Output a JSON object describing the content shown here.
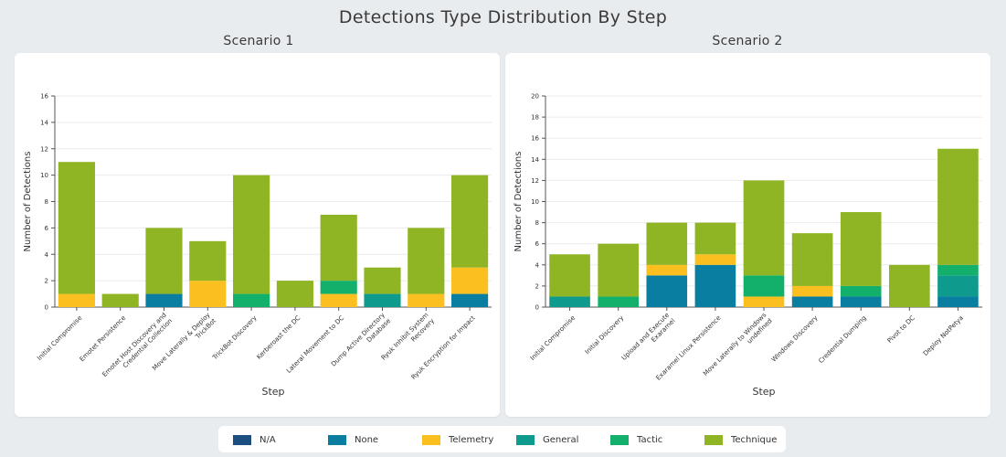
{
  "page_title": "Detections Type Distribution By Step",
  "legend": [
    {
      "name": "N/A",
      "color": "#1c4e80"
    },
    {
      "name": "None",
      "color": "#0a7ea0"
    },
    {
      "name": "Telemetry",
      "color": "#fbbf1f"
    },
    {
      "name": "General",
      "color": "#0f9a8e"
    },
    {
      "name": "Tactic",
      "color": "#12b06a"
    },
    {
      "name": "Technique",
      "color": "#8fb424"
    }
  ],
  "chart_data": [
    {
      "type": "bar",
      "stacked": true,
      "title": "Scenario 1",
      "xlabel": "Step",
      "ylabel": "Number of Detections",
      "ylim": [
        0,
        16
      ],
      "yticks": [
        0,
        2,
        4,
        6,
        8,
        10,
        12,
        14,
        16
      ],
      "grid": true,
      "categories": [
        "Initial Compromise",
        "Emotet Persistence",
        "Emotet Host Discovery and Credential Collection",
        "Move Laterally & Deploy TrickBot",
        "TrickBot Discovery",
        "Kerberoast the DC",
        "Lateral Movement to DC",
        "Dump Active Directory Database",
        "Ryuk Inhibit System Recovery",
        "Ryuk Encryption for Impact"
      ],
      "series": [
        {
          "name": "N/A",
          "values": [
            0,
            0,
            0,
            0,
            0,
            0,
            0,
            0,
            0,
            0
          ]
        },
        {
          "name": "None",
          "values": [
            0,
            0,
            1,
            0,
            0,
            0,
            0,
            0,
            0,
            1
          ]
        },
        {
          "name": "Telemetry",
          "values": [
            1,
            0,
            0,
            2,
            0,
            0,
            1,
            0,
            1,
            2
          ]
        },
        {
          "name": "General",
          "values": [
            0,
            0,
            0,
            0,
            0,
            0,
            0,
            1,
            0,
            0
          ]
        },
        {
          "name": "Tactic",
          "values": [
            0,
            0,
            0,
            0,
            1,
            0,
            1,
            0,
            0,
            0
          ]
        },
        {
          "name": "Technique",
          "values": [
            10,
            1,
            5,
            3,
            9,
            2,
            5,
            2,
            5,
            7
          ]
        }
      ]
    },
    {
      "type": "bar",
      "stacked": true,
      "title": "Scenario 2",
      "xlabel": "Step",
      "ylabel": "Number of Detections",
      "ylim": [
        0,
        20
      ],
      "yticks": [
        0,
        2,
        4,
        6,
        8,
        10,
        12,
        14,
        16,
        18,
        20
      ],
      "grid": true,
      "categories": [
        "Initial Compromise",
        "Initial Discovery",
        "Upload and Execute Exaramel",
        "Exaramel Linux Persistence",
        "Move Laterally to Windows undefined",
        "Windows Discovery",
        "Credential Dumping",
        "Pivot to DC",
        "Deploy NotPetya"
      ],
      "series": [
        {
          "name": "N/A",
          "values": [
            0,
            0,
            0,
            0,
            0,
            0,
            0,
            0,
            0
          ]
        },
        {
          "name": "None",
          "values": [
            0,
            0,
            3,
            4,
            0,
            1,
            1,
            0,
            1
          ]
        },
        {
          "name": "Telemetry",
          "values": [
            0,
            0,
            1,
            1,
            1,
            1,
            0,
            0,
            0
          ]
        },
        {
          "name": "General",
          "values": [
            1,
            0,
            0,
            0,
            0,
            0,
            0,
            0,
            2
          ]
        },
        {
          "name": "Tactic",
          "values": [
            0,
            1,
            0,
            0,
            2,
            0,
            1,
            0,
            1
          ]
        },
        {
          "name": "Technique",
          "values": [
            4,
            5,
            4,
            3,
            9,
            5,
            7,
            4,
            11
          ]
        }
      ]
    }
  ]
}
